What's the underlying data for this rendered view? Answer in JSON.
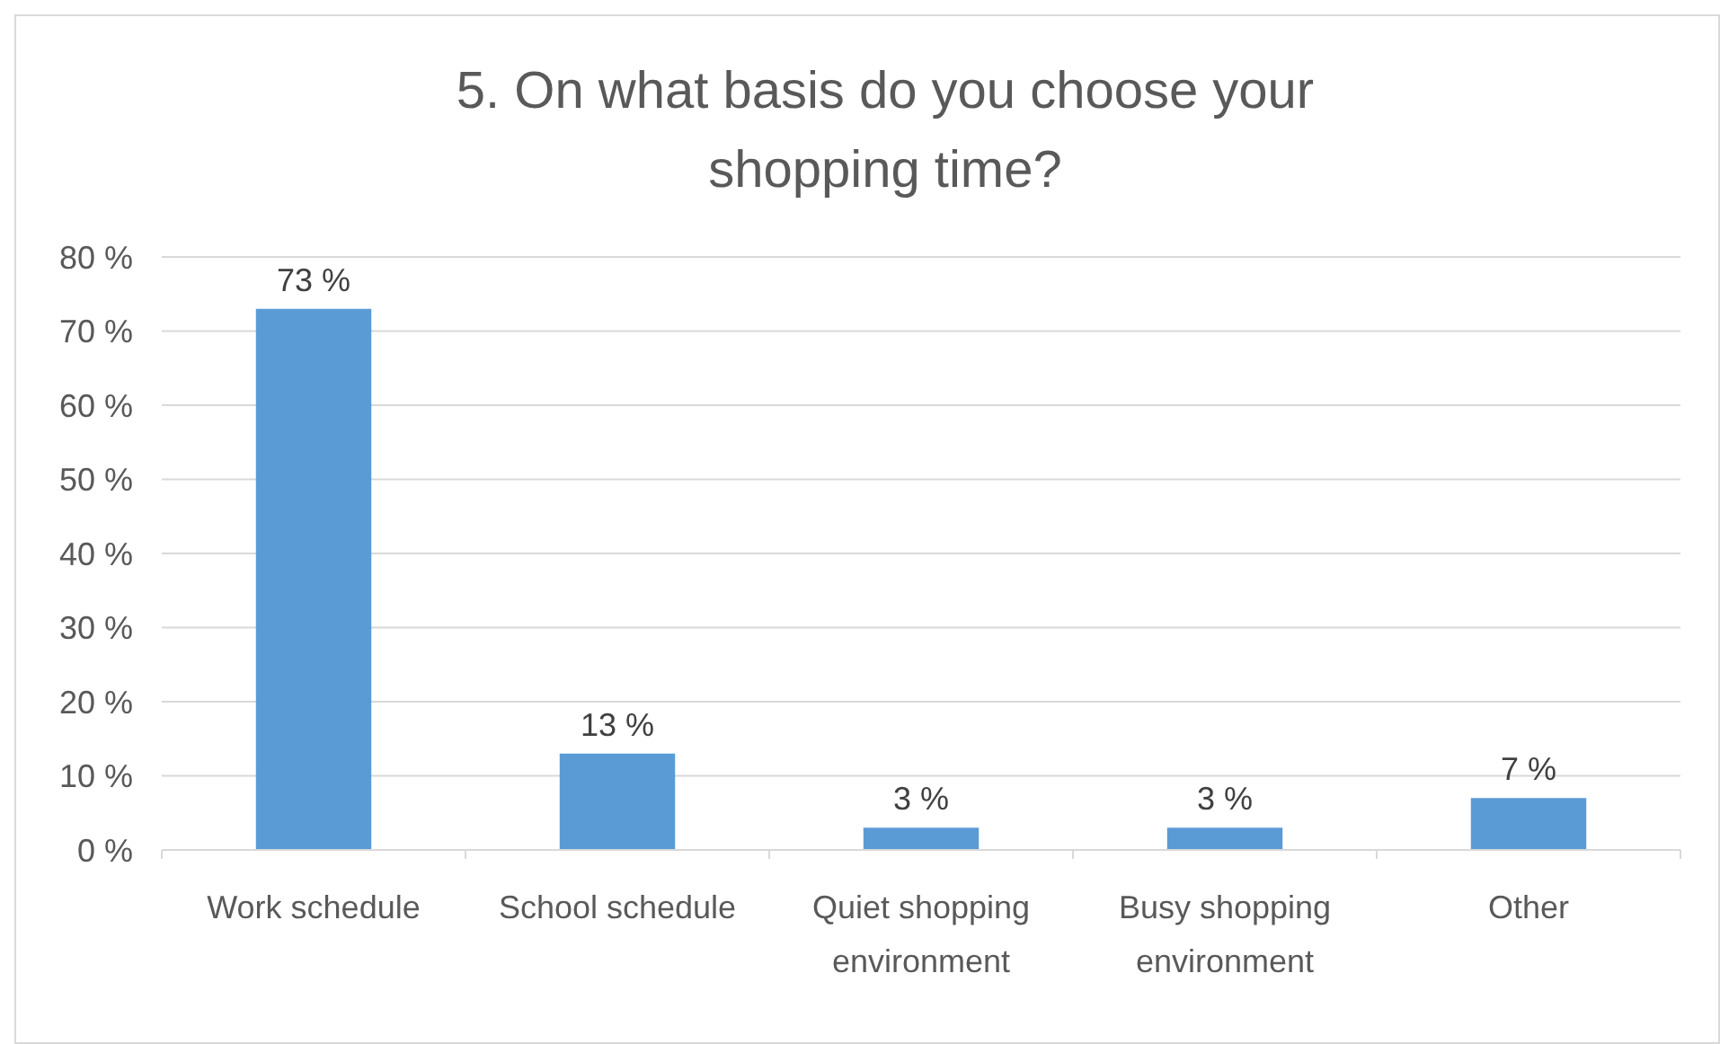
{
  "chart_data": {
    "type": "bar",
    "title": "5. On what basis do you choose your shopping time?",
    "categories": [
      "Work schedule",
      "School schedule",
      "Quiet shopping environment",
      "Busy shopping environment",
      "Other"
    ],
    "values": [
      73,
      13,
      3,
      3,
      7
    ],
    "color": "#5b9bd5",
    "value_labels": [
      "73 %",
      "13 %",
      "3 %",
      "3 %",
      "7 %"
    ],
    "ylim": [
      0,
      80
    ],
    "yticks": [
      {
        "value": 0,
        "label": "0 %"
      },
      {
        "value": 10,
        "label": "10 %"
      },
      {
        "value": 20,
        "label": "20 %"
      },
      {
        "value": 30,
        "label": "30 %"
      },
      {
        "value": 40,
        "label": "40 %"
      },
      {
        "value": 50,
        "label": "50 %"
      },
      {
        "value": 60,
        "label": "60 %"
      },
      {
        "value": 70,
        "label": "70 %"
      },
      {
        "value": 80,
        "label": "80 %"
      }
    ],
    "grid": "y"
  }
}
